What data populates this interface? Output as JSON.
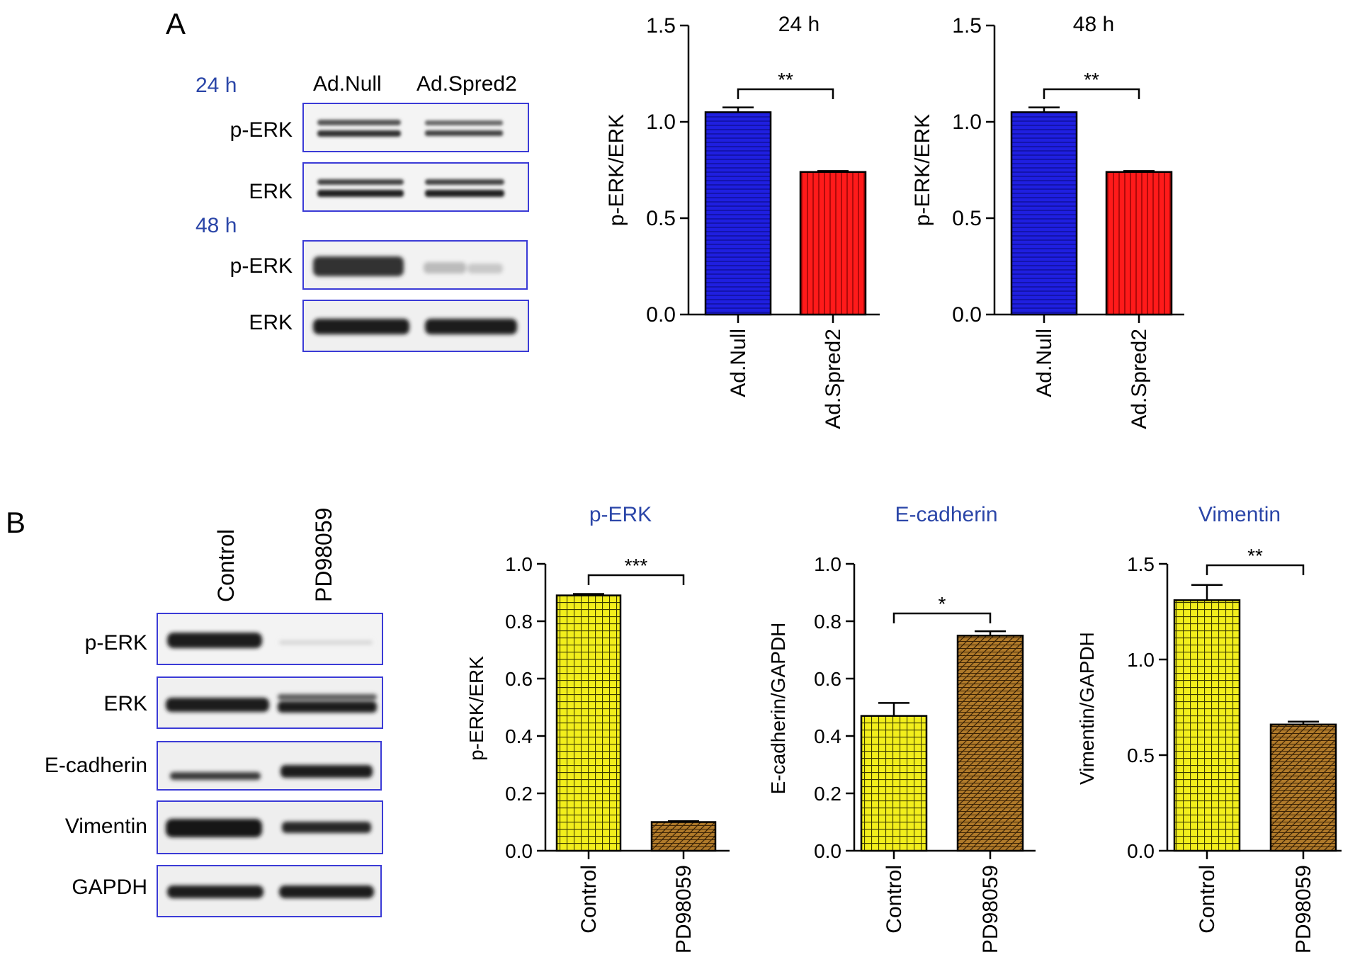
{
  "panels": {
    "a": {
      "letter": "A"
    },
    "b": {
      "letter": "B"
    }
  },
  "blots": {
    "a": {
      "col_labels": [
        "Ad.Null",
        "Ad.Spred2"
      ],
      "time_24": "24 h",
      "time_48": "48 h",
      "row_labels_24": [
        "p-ERK",
        "ERK"
      ],
      "row_labels_48": [
        "p-ERK",
        "ERK"
      ]
    },
    "b": {
      "col_labels": [
        "Control",
        "PD98059"
      ],
      "row_labels": [
        "p-ERK",
        "ERK",
        "E-cadherin",
        "Vimentin",
        "GAPDH"
      ]
    }
  },
  "colors": {
    "blot_frame": "#3b3bd6",
    "time_label": "#2b46a8",
    "panel_title": "#2b46a8",
    "bar_blue": "#1f1fe0",
    "bar_red": "#ff1a1a",
    "bar_yellow": "#f2ee1c",
    "bar_brown": "#b07a2a"
  },
  "chart_data": [
    {
      "type": "bar",
      "title": "24 h",
      "ylabel": "p-ERK/ERK",
      "categories": [
        "Ad.Null",
        "Ad.Spred2"
      ],
      "values": [
        1.05,
        0.74
      ],
      "errors": [
        0.025,
        0.005
      ],
      "ylim": [
        0,
        1.5
      ],
      "yticks": [
        "0.0",
        "0.5",
        "1.0",
        "1.5"
      ],
      "tick_values": [
        0,
        0.5,
        1.0,
        1.5
      ],
      "significance": "**",
      "bar_colors": [
        "blue",
        "red"
      ]
    },
    {
      "type": "bar",
      "title": "48 h",
      "ylabel": "p-ERK/ERK",
      "categories": [
        "Ad.Null",
        "Ad.Spred2"
      ],
      "values": [
        1.05,
        0.74
      ],
      "errors": [
        0.025,
        0.005
      ],
      "ylim": [
        0,
        1.5
      ],
      "yticks": [
        "0.0",
        "0.5",
        "1.0",
        "1.5"
      ],
      "tick_values": [
        0,
        0.5,
        1.0,
        1.5
      ],
      "significance": "**",
      "bar_colors": [
        "blue",
        "red"
      ]
    },
    {
      "type": "bar",
      "title": "p-ERK",
      "ylabel": "p-ERK/ERK",
      "categories": [
        "Control",
        "PD98059"
      ],
      "values": [
        0.89,
        0.1
      ],
      "errors": [
        0.005,
        0.003
      ],
      "ylim": [
        0,
        1.0
      ],
      "yticks": [
        "0.0",
        "0.2",
        "0.4",
        "0.6",
        "0.8",
        "1.0"
      ],
      "tick_values": [
        0,
        0.2,
        0.4,
        0.6,
        0.8,
        1.0
      ],
      "significance": "***",
      "bar_colors": [
        "yellow",
        "brown"
      ]
    },
    {
      "type": "bar",
      "title": "E-cadherin",
      "ylabel": "E-cadherin/GAPDH",
      "categories": [
        "Control",
        "PD98059"
      ],
      "values": [
        0.47,
        0.75
      ],
      "errors": [
        0.045,
        0.015
      ],
      "ylim": [
        0,
        1.0
      ],
      "yticks": [
        "0.0",
        "0.2",
        "0.4",
        "0.6",
        "0.8",
        "1.0"
      ],
      "tick_values": [
        0,
        0.2,
        0.4,
        0.6,
        0.8,
        1.0
      ],
      "significance": "*",
      "bar_colors": [
        "yellow",
        "brown"
      ]
    },
    {
      "type": "bar",
      "title": "Vimentin",
      "ylabel": "Vimentin/GAPDH",
      "categories": [
        "Control",
        "PD98059"
      ],
      "values": [
        1.31,
        0.66
      ],
      "errors": [
        0.08,
        0.015
      ],
      "ylim": [
        0,
        1.5
      ],
      "yticks": [
        "0.0",
        "0.5",
        "1.0",
        "1.5"
      ],
      "tick_values": [
        0,
        0.5,
        1.0,
        1.5
      ],
      "significance": "**",
      "bar_colors": [
        "yellow",
        "brown"
      ]
    }
  ]
}
